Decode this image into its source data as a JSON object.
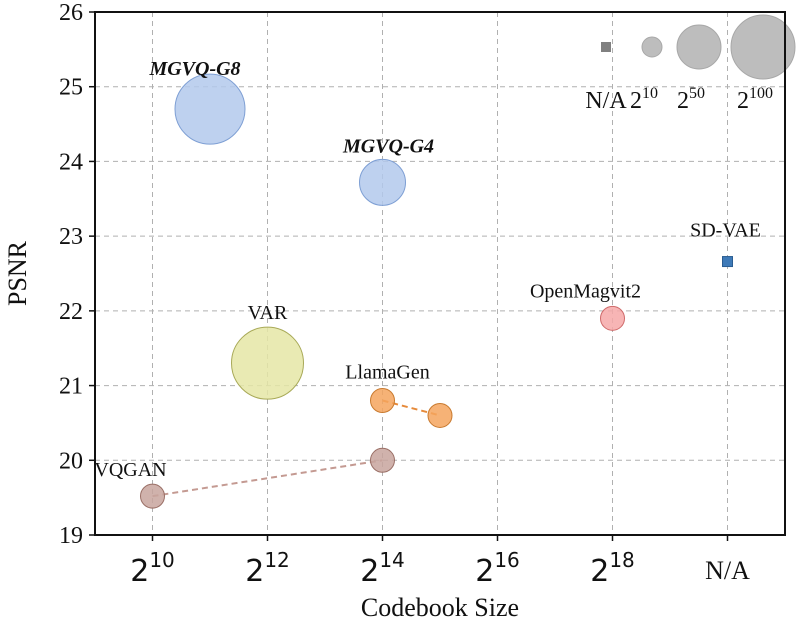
{
  "chart_data": {
    "type": "scatter",
    "xlabel": "Codebook Size",
    "ylabel": "PSNR",
    "ylim": [
      19,
      26
    ],
    "yticks": [
      "19",
      "20",
      "21",
      "22",
      "23",
      "24",
      "25",
      "26"
    ],
    "xticks": [
      {
        "base": "2",
        "exp": "10",
        "log2": 10
      },
      {
        "base": "2",
        "exp": "12",
        "log2": 12
      },
      {
        "base": "2",
        "exp": "14",
        "log2": 14
      },
      {
        "base": "2",
        "exp": "16",
        "log2": 16
      },
      {
        "base": "2",
        "exp": "18",
        "log2": 18
      },
      {
        "base": "",
        "exp": "",
        "text": "N/A",
        "log2": 20
      }
    ],
    "xlim_log2": [
      9,
      21
    ],
    "grid": true,
    "points": [
      {
        "label": "VQGAN",
        "x_log2": 10,
        "y": 19.52,
        "size": "small",
        "color": "#c8a59e",
        "edge": "#9a6f66",
        "shape": "circle"
      },
      {
        "label": "",
        "x_log2": 14,
        "y": 20.0,
        "size": "small",
        "color": "#c8a59e",
        "edge": "#9a6f66",
        "shape": "circle"
      },
      {
        "label": "LlamaGen",
        "x_log2": 14,
        "y": 20.8,
        "size": "small",
        "color": "#f5a55e",
        "edge": "#c97a2f",
        "shape": "circle"
      },
      {
        "label": "",
        "x_log2": 15,
        "y": 20.6,
        "size": "small",
        "color": "#f5a55e",
        "edge": "#c97a2f",
        "shape": "circle"
      },
      {
        "label": "VAR",
        "x_log2": 12,
        "y": 21.3,
        "size": "xlarge",
        "color": "#e5e6a6",
        "edge": "#a8a957",
        "shape": "circle"
      },
      {
        "label": "OpenMagvit2",
        "x_log2": 18,
        "y": 21.9,
        "size": "small",
        "color": "#f6a8a8",
        "edge": "#cf6a6a",
        "shape": "circle"
      },
      {
        "label": "SD-VAE",
        "x_log2": 20,
        "y": 22.66,
        "size": "na",
        "color": "#3e7ab8",
        "edge": "#2a5d92",
        "shape": "square"
      },
      {
        "label": "MGVQ-G4",
        "x_log2": 14,
        "y": 23.72,
        "size": "medium",
        "color": "#b3c9ec",
        "edge": "#7e9fd4",
        "shape": "circle",
        "style": "bold-italic"
      },
      {
        "label": "MGVQ-G8",
        "x_log2": 11,
        "y": 24.7,
        "size": "large",
        "color": "#b3c9ec",
        "edge": "#7e9fd4",
        "shape": "circle",
        "style": "bold-italic"
      }
    ],
    "lines": [
      {
        "from": 0,
        "to": 1,
        "color": "#c49a92"
      },
      {
        "from": 2,
        "to": 3,
        "color": "#e68a3a"
      }
    ],
    "legend": {
      "placement": "top-right",
      "title": "",
      "entries": [
        {
          "label": "N/A",
          "base": "",
          "exp": "",
          "shape": "square"
        },
        {
          "label": "",
          "base": "2",
          "exp": "10",
          "shape": "circle",
          "size": "small"
        },
        {
          "label": "",
          "base": "2",
          "exp": "50",
          "shape": "circle",
          "size": "medium"
        },
        {
          "label": "",
          "base": "2",
          "exp": "100",
          "shape": "circle",
          "size": "large"
        }
      ],
      "color": "#bdbdbd"
    }
  }
}
